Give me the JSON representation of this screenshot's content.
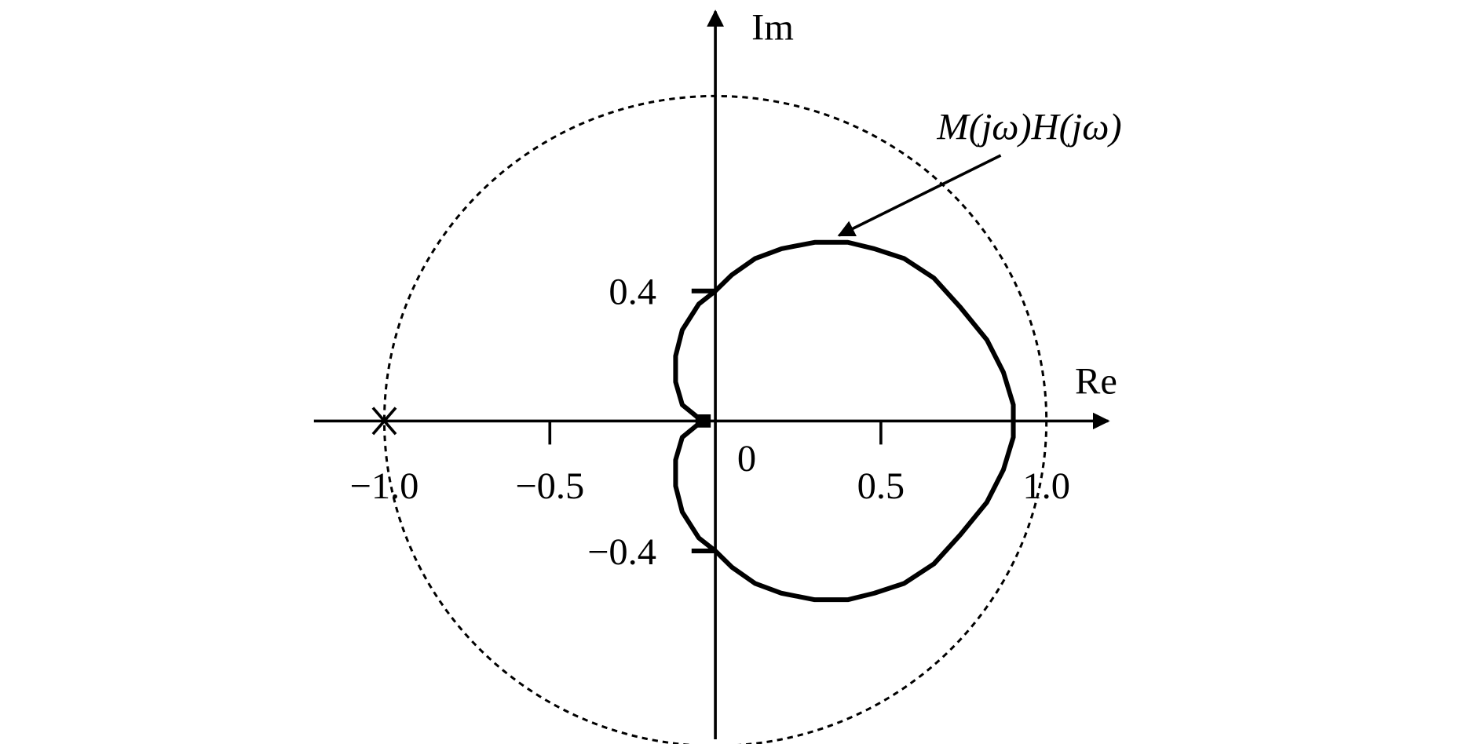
{
  "chart_data": {
    "type": "line",
    "title": "",
    "xlabel": "Re",
    "ylabel": "Im",
    "xlim": [
      -1.2,
      1.2
    ],
    "ylim": [
      -0.9,
      1.1
    ],
    "grid": false,
    "x_ticks": [
      {
        "value": -1.0,
        "label": "−1.0"
      },
      {
        "value": -0.5,
        "label": "−0.5"
      },
      {
        "value": 0.5,
        "label": "0.5"
      },
      {
        "value": 1.0,
        "label": "1.0"
      }
    ],
    "origin_label": "0",
    "y_ticks": [
      {
        "value": 0.4,
        "label": "0.4"
      },
      {
        "value": -0.4,
        "label": "−0.4"
      }
    ],
    "unit_circle": {
      "radius": 1.0,
      "style": "dotted"
    },
    "critical_point": {
      "re": -1.0,
      "im": 0,
      "marker": "x"
    },
    "series": [
      {
        "annotation": "M(jω)H(jω)",
        "upper_half_points": [
          [
            -0.04,
            0
          ],
          [
            -0.1,
            0.05
          ],
          [
            -0.12,
            0.12
          ],
          [
            -0.12,
            0.2
          ],
          [
            -0.1,
            0.28
          ],
          [
            -0.05,
            0.36
          ],
          [
            0,
            0.4
          ],
          [
            0.05,
            0.45
          ],
          [
            0.12,
            0.5
          ],
          [
            0.2,
            0.53
          ],
          [
            0.3,
            0.55
          ],
          [
            0.4,
            0.55
          ],
          [
            0.48,
            0.53
          ],
          [
            0.57,
            0.5
          ],
          [
            0.66,
            0.44
          ],
          [
            0.74,
            0.35
          ],
          [
            0.82,
            0.25
          ],
          [
            0.87,
            0.15
          ],
          [
            0.9,
            0.05
          ],
          [
            0.9,
            0
          ]
        ],
        "symmetric_about_real_axis": true
      }
    ]
  }
}
